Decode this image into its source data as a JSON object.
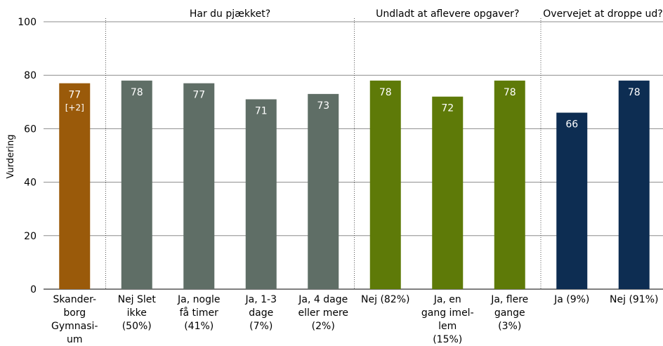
{
  "chart_data": {
    "type": "bar",
    "ylabel": "Vurdering",
    "ylim": [
      0,
      100
    ],
    "yticks": [
      0,
      20,
      40,
      60,
      80,
      100
    ],
    "grid": true,
    "groups": [
      {
        "title": "",
        "color": "#9a5a0a",
        "bars": [
          {
            "label": [
              "Skander-",
              "borg",
              "Gymnasi-",
              "um"
            ],
            "value": 77,
            "value_label": "77",
            "sub_label": "[+2]"
          }
        ]
      },
      {
        "title": "Har du pjækket?",
        "color": "#5f6e66",
        "bars": [
          {
            "label": [
              "Nej Slet",
              "ikke",
              "(50%)"
            ],
            "value": 78,
            "value_label": "78"
          },
          {
            "label": [
              "Ja, nogle",
              "få timer",
              "(41%)"
            ],
            "value": 77,
            "value_label": "77"
          },
          {
            "label": [
              "Ja, 1-3",
              "dage",
              "(7%)"
            ],
            "value": 71,
            "value_label": "71"
          },
          {
            "label": [
              "Ja, 4 dage",
              "eller mere",
              "(2%)"
            ],
            "value": 73,
            "value_label": "73"
          }
        ]
      },
      {
        "title": "Undladt at aflevere opgaver?",
        "color": "#5e7a08",
        "bars": [
          {
            "label": [
              "Nej (82%)"
            ],
            "value": 78,
            "value_label": "78"
          },
          {
            "label": [
              "Ja, en",
              "gang imel-",
              "lem",
              "(15%)"
            ],
            "value": 72,
            "value_label": "72"
          },
          {
            "label": [
              "Ja, flere",
              "gange",
              "(3%)"
            ],
            "value": 78,
            "value_label": "78"
          }
        ]
      },
      {
        "title": "Overvejet at droppe ud?",
        "color": "#0d2d52",
        "bars": [
          {
            "label": [
              "Ja (9%)"
            ],
            "value": 66,
            "value_label": "66"
          },
          {
            "label": [
              "Nej (91%)"
            ],
            "value": 78,
            "value_label": "78"
          }
        ]
      }
    ]
  }
}
